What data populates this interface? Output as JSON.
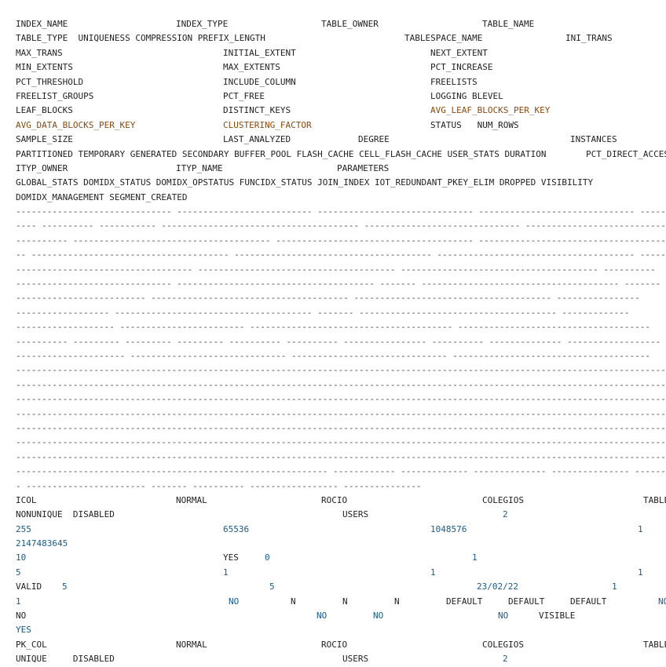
{
  "header_lines": [
    [
      [
        "INDEX_NAME",
        0,
        ""
      ],
      [
        "INDEX_TYPE",
        204,
        ""
      ],
      [
        "TABLE_OWNER",
        389,
        ""
      ],
      [
        "TABLE_NAME",
        594,
        ""
      ]
    ],
    [
      [
        "TABLE_TYPE  UNIQUENESS COMPRESSION PREFIX_LENGTH",
        0,
        ""
      ],
      [
        "TABLESPACE_NAME",
        495,
        ""
      ],
      [
        "INI_TRANS",
        700,
        ""
      ]
    ],
    [
      [
        "MAX_TRANS",
        0,
        ""
      ],
      [
        "INITIAL_EXTENT",
        264,
        ""
      ],
      [
        "NEXT_EXTENT",
        528,
        ""
      ]
    ],
    [
      [
        "MIN_EXTENTS",
        0,
        ""
      ],
      [
        "MAX_EXTENTS",
        264,
        ""
      ],
      [
        "PCT_INCREASE",
        528,
        ""
      ]
    ],
    [
      [
        "PCT_THRESHOLD",
        0,
        ""
      ],
      [
        "INCLUDE_COLUMN",
        264,
        ""
      ],
      [
        "FREELISTS",
        528,
        ""
      ]
    ],
    [
      [
        "FREELIST_GROUPS",
        0,
        ""
      ],
      [
        "PCT_FREE",
        264,
        ""
      ],
      [
        "LOGGING BLEVEL",
        528,
        ""
      ]
    ],
    [
      [
        "LEAF_BLOCKS",
        0,
        ""
      ],
      [
        "DISTINCT_KEYS",
        264,
        ""
      ],
      [
        "AVG_LEAF_BLOCKS_PER_KEY",
        528,
        "o"
      ]
    ],
    [
      [
        "AVG_DATA_BLOCKS_PER_KEY",
        0,
        "o"
      ],
      [
        "CLUSTERING_FACTOR",
        264,
        "o"
      ],
      [
        "STATUS   NUM_ROWS",
        528,
        ""
      ]
    ],
    [
      [
        "SAMPLE_SIZE",
        0,
        ""
      ],
      [
        "LAST_ANALYZED",
        264,
        ""
      ],
      [
        "DEGREE",
        436,
        ""
      ],
      [
        "INSTANCES",
        706,
        ""
      ]
    ],
    [
      [
        "PARTITIONED TEMPORARY GENERATED SECONDARY BUFFER_POOL FLASH_CACHE CELL_FLASH_CACHE USER_STATS DURATION",
        0,
        ""
      ],
      [
        "PCT_DIRECT_ACCESS",
        726,
        ""
      ]
    ],
    [
      [
        "ITYP_OWNER",
        0,
        ""
      ],
      [
        "ITYP_NAME",
        204,
        ""
      ],
      [
        "PARAMETERS",
        409,
        ""
      ]
    ],
    [
      [
        "GLOBAL_STATS DOMIDX_STATUS DOMIDX_OPSTATUS FUNCIDX_STATUS JOIN_INDEX IOT_REDUNDANT_PKEY_ELIM DROPPED VISIBILITY",
        0,
        ""
      ]
    ],
    [
      [
        "DOMIDX_MANAGEMENT SEGMENT_CREATED",
        0,
        ""
      ]
    ]
  ],
  "separator_lines": [
    "------------------------------ -------------------------- ------------------------------ ------------------------------ ----------",
    "---- ---------- ----------- -------------------------------------- ------------------------------ ------------------------------",
    "---------- -------------------------------------- -------------------------------------- --------------------------------------",
    "-- -------------------------------------- -------------------------------------- -------------------------------------- -------",
    "---------------------------------- -------------------------------------- -------------------------------------- ----------",
    "------------------------------ -------------------------------------- ------- -------------------------------------- -------",
    "------------------------- -------------------------------------- -------------------------------------- ----------------",
    "------------------ -------------------------------------- ------- -------------------------------------- -------------",
    "------------------- ------------------------ --------------------------------------- -------------------------------------",
    "---------- --------- --------- --------- ---------- ---------- ---------------- ---------- -------------- ------------------",
    "--------------------- ------------------------------ ------------------------------ --------------------------------------",
    "------------------------------------------------------------------------------------------------------------------------------",
    "------------------------------------------------------------------------------------------------------------------------------",
    "------------------------------------------------------------------------------------------------------------------------------",
    "------------------------------------------------------------------------------------------------------------------------------",
    "------------------------------------------------------------------------------------------------------------------------------",
    "------------------------------------------------------------------------------------------------------------------------------",
    "------------------------------------------------------------------------------------------------------------------------------",
    "------------------------------------------------------------ ------------ ------------- -------------- --------------- -------",
    "- ----------------------- ------- ---------- ----------------- ---------------"
  ],
  "row_lines": [
    [
      [
        "ICOL",
        0,
        ""
      ],
      [
        "NORMAL",
        204,
        ""
      ],
      [
        "ROCIO",
        389,
        ""
      ],
      [
        "COLEGIOS",
        594,
        ""
      ],
      [
        "TABLE",
        799,
        ""
      ]
    ],
    [
      [
        "NONUNIQUE  DISABLED",
        0,
        ""
      ],
      [
        "USERS",
        416,
        ""
      ],
      [
        "2",
        620,
        "b"
      ]
    ],
    [
      [
        "255",
        0,
        "b"
      ],
      [
        "65536",
        264,
        "b"
      ],
      [
        "1048576",
        528,
        "b"
      ],
      [
        "1",
        792,
        "b"
      ]
    ],
    [
      [
        "2147483645",
        0,
        "b"
      ]
    ],
    [
      [
        "10",
        0,
        "b"
      ],
      [
        "YES",
        264,
        ""
      ],
      [
        "0",
        317,
        "b"
      ],
      [
        "1",
        581,
        "b"
      ]
    ],
    [
      [
        "5",
        0,
        "b"
      ],
      [
        "1",
        264,
        "b"
      ],
      [
        "1",
        528,
        "b"
      ],
      [
        "1",
        792,
        "b"
      ]
    ],
    [
      [
        "VALID",
        0,
        ""
      ],
      [
        "5",
        59,
        "b"
      ],
      [
        "5",
        323,
        "b"
      ],
      [
        "23/02/22",
        587,
        "b"
      ],
      [
        "1",
        759,
        "b"
      ]
    ],
    [
      [
        "1",
        0,
        "b"
      ],
      [
        "NO",
        271,
        "b"
      ],
      [
        "N",
        350,
        ""
      ],
      [
        "N",
        416,
        ""
      ],
      [
        "N",
        482,
        ""
      ],
      [
        "DEFAULT",
        548,
        ""
      ],
      [
        "DEFAULT",
        627,
        ""
      ],
      [
        "DEFAULT",
        706,
        ""
      ],
      [
        "NO",
        818,
        "b"
      ]
    ],
    [
      [
        "NO",
        0,
        ""
      ],
      [
        "NO",
        383,
        "b"
      ],
      [
        "NO",
        455,
        "b"
      ],
      [
        "NO",
        614,
        "b"
      ],
      [
        "VISIBLE",
        666,
        ""
      ]
    ],
    [
      [
        "YES",
        0,
        "b"
      ]
    ],
    [
      [
        "PK_COL",
        0,
        ""
      ],
      [
        "NORMAL",
        204,
        ""
      ],
      [
        "ROCIO",
        389,
        ""
      ],
      [
        "COLEGIOS",
        594,
        ""
      ],
      [
        "TABLE",
        799,
        ""
      ]
    ],
    [
      [
        "UNIQUE     DISABLED",
        0,
        ""
      ],
      [
        "USERS",
        416,
        ""
      ],
      [
        "2",
        620,
        "b"
      ]
    ]
  ]
}
